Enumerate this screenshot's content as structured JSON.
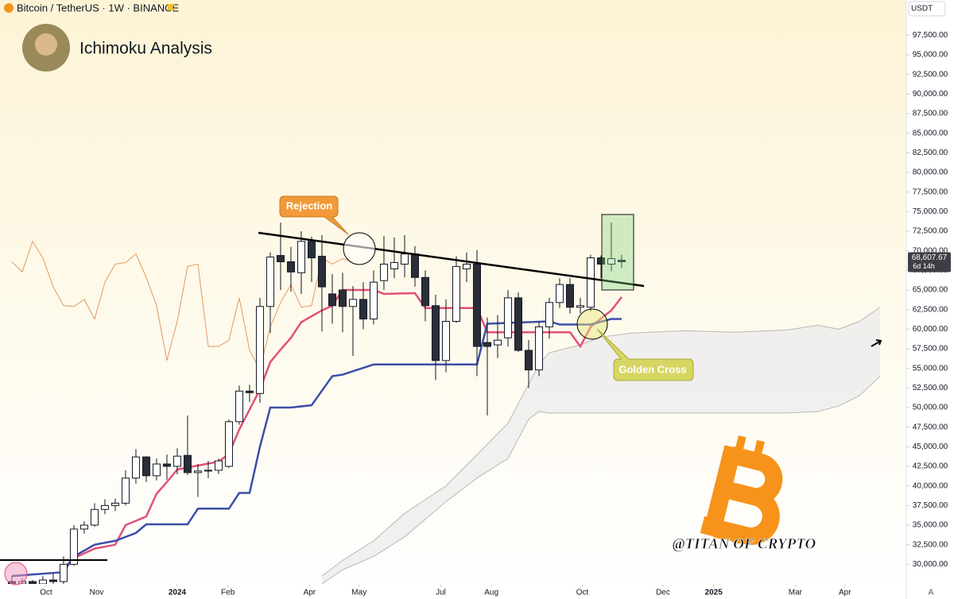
{
  "header": {
    "symbol": "Bitcoin / TetherUS · 1W · BINANCE",
    "currency": "USDT",
    "corner_button": "A"
  },
  "chart_data": {
    "type": "candlestick",
    "title": "Ichimoku Analysis",
    "open": [
      27800,
      27500,
      27800,
      27500,
      28000,
      27800,
      30000,
      34500,
      35000,
      37000,
      37500,
      37800,
      41000,
      43700,
      41300,
      42800,
      42500,
      43900,
      41700,
      41900,
      42000,
      42500,
      48200,
      52100,
      51800,
      62900,
      69400,
      68600,
      67200,
      71200,
      69300,
      64500,
      65000,
      62900,
      63800,
      61300,
      66200,
      67700,
      68300,
      69600,
      66600,
      63000,
      56000,
      61000,
      67700,
      68300,
      58300,
      58000,
      58900,
      64000,
      57300,
      54800,
      60300,
      63400,
      65700,
      62800,
      62800,
      69100,
      68300,
      68800
    ],
    "high": [
      28500,
      28200,
      28000,
      28500,
      28800,
      31000,
      35000,
      35500,
      37800,
      38300,
      38400,
      42000,
      44700,
      43800,
      43500,
      44000,
      44800,
      49000,
      42800,
      43200,
      43500,
      48500,
      52800,
      52900,
      64000,
      69800,
      73600,
      70500,
      72500,
      71800,
      72000,
      67000,
      67200,
      65500,
      66000,
      67500,
      71900,
      71700,
      72000,
      70600,
      67500,
      64400,
      63800,
      69300,
      69800,
      70100,
      61500,
      61800,
      65000,
      64700,
      58600,
      61000,
      64000,
      66500,
      66500,
      64000,
      69500,
      69400,
      73600,
      69500
    ],
    "low": [
      27000,
      26800,
      27000,
      27200,
      27300,
      27500,
      29800,
      33900,
      34800,
      36400,
      36800,
      37500,
      40300,
      40500,
      40700,
      40800,
      41500,
      41400,
      38600,
      41000,
      41500,
      42300,
      47800,
      50700,
      50600,
      59500,
      65000,
      64800,
      64500,
      66000,
      59700,
      60700,
      59600,
      56600,
      60000,
      60600,
      65000,
      66500,
      66600,
      65400,
      61000,
      53500,
      54500,
      60800,
      66000,
      54000,
      49000,
      56300,
      57800,
      57100,
      52500,
      54000,
      58800,
      62700,
      62000,
      62000,
      62300,
      66500,
      67400,
      67800
    ],
    "close": [
      27500,
      27800,
      27500,
      28000,
      27800,
      30000,
      34500,
      35000,
      37000,
      37500,
      37800,
      41000,
      43700,
      41300,
      42800,
      42500,
      43800,
      41700,
      41900,
      42000,
      43200,
      48200,
      52100,
      51900,
      62900,
      69200,
      68600,
      67300,
      71200,
      69100,
      65400,
      63000,
      62900,
      63800,
      61300,
      66000,
      68300,
      68500,
      69600,
      66600,
      63000,
      56000,
      61000,
      68000,
      68300,
      57800,
      57800,
      58600,
      64000,
      57300,
      54800,
      60300,
      63400,
      65700,
      62800,
      63000,
      69100,
      68300,
      69000,
      68607.67
    ],
    "up_color": "#ffffff",
    "down_color": "#2a2e39",
    "lagging_color": "#e39a5f",
    "last_price_label": "68,607.67",
    "countdown": "6d 14h",
    "lines": [
      {
        "color": "#e0507a",
        "x": [
          5,
          6,
          8,
          10,
          11,
          13,
          14,
          15,
          16,
          18,
          20,
          21,
          22,
          24,
          25,
          26,
          27,
          28,
          30,
          31,
          32,
          35,
          36,
          39,
          40,
          45,
          46,
          54,
          55,
          56,
          58,
          59
        ],
        "values": [
          29500,
          30800,
          32000,
          32500,
          35000,
          36100,
          39000,
          40500,
          42100,
          42600,
          43100,
          44100,
          47200,
          52300,
          55800,
          57400,
          58900,
          60900,
          62400,
          63000,
          65000,
          65000,
          64500,
          64600,
          62700,
          62700,
          59600,
          59600,
          57800,
          60300,
          62400,
          64100
        ]
      },
      {
        "color": "#3b4fa8",
        "x": [
          0,
          5,
          6,
          8,
          10,
          12,
          13,
          17,
          18,
          21,
          22,
          23,
          24,
          25,
          27,
          29,
          31,
          32,
          35,
          36,
          45,
          46,
          52,
          53,
          56,
          58,
          59
        ],
        "values": [
          28500,
          29000,
          31000,
          32500,
          33000,
          34000,
          35100,
          35100,
          37100,
          37100,
          39100,
          39100,
          45000,
          50000,
          50000,
          50300,
          54000,
          54200,
          55500,
          55500,
          55500,
          60700,
          61000,
          60600,
          60600,
          61300,
          61300
        ]
      }
    ],
    "cloud": {
      "color": "#ececec",
      "x": [
        30,
        32,
        35,
        38,
        42,
        45,
        48,
        50,
        51,
        52,
        55,
        57,
        60,
        65,
        70,
        75,
        78,
        80,
        82,
        84
      ],
      "upper": [
        28500,
        30500,
        33000,
        36500,
        40000,
        44000,
        48000,
        53000,
        55500,
        57000,
        58000,
        59000,
        59500,
        59800,
        59600,
        59900,
        60500,
        60000,
        61000,
        62800
      ],
      "lower": [
        27500,
        29300,
        31000,
        33500,
        38000,
        41000,
        43500,
        48500,
        49500,
        49300,
        49300,
        49300,
        49300,
        49300,
        49300,
        49300,
        49500,
        50200,
        51500,
        54000
      ]
    },
    "annotations": [
      {
        "text": "Rejection"
      },
      {
        "text": "Golden Cross"
      }
    ],
    "watermark": "@TITAN OF CRYPTO",
    "xlim": [
      -1.15,
      86.54
    ],
    "xticks": [
      {
        "value": 3.3,
        "label": "Oct"
      },
      {
        "value": 8.2,
        "label": "Nov"
      },
      {
        "value": 16,
        "label": "2024"
      },
      {
        "value": 20.9,
        "label": "Feb"
      },
      {
        "value": 28.8,
        "label": "Apr"
      },
      {
        "value": 33.6,
        "label": "May"
      },
      {
        "value": 41.5,
        "label": "Jul"
      },
      {
        "value": 46.4,
        "label": "Aug"
      },
      {
        "value": 55.2,
        "label": "Oct"
      },
      {
        "value": 63,
        "label": "Dec"
      },
      {
        "value": 67.9,
        "label": "2025"
      },
      {
        "value": 75.8,
        "label": "Mar"
      },
      {
        "value": 80.6,
        "label": "Apr"
      }
    ],
    "ylim": [
      27500,
      102000
    ],
    "yticks": [
      {
        "value": 30000,
        "label": "30,000.00"
      },
      {
        "value": 32500,
        "label": "32,500.00"
      },
      {
        "value": 35000,
        "label": "35,000.00"
      },
      {
        "value": 37500,
        "label": "37,500.00"
      },
      {
        "value": 40000,
        "label": "40,000.00"
      },
      {
        "value": 42500,
        "label": "42,500.00"
      },
      {
        "value": 45000,
        "label": "45,000.00"
      },
      {
        "value": 47500,
        "label": "47,500.00"
      },
      {
        "value": 50000,
        "label": "50,000.00"
      },
      {
        "value": 52500,
        "label": "52,500.00"
      },
      {
        "value": 55000,
        "label": "55,000.00"
      },
      {
        "value": 57500,
        "label": "57,500.00"
      },
      {
        "value": 60000,
        "label": "60,000.00"
      },
      {
        "value": 62500,
        "label": "62,500.00"
      },
      {
        "value": 65000,
        "label": "65,000.00"
      },
      {
        "value": 67500,
        "label": "67,500.00"
      },
      {
        "value": 70000,
        "label": "70,000.00"
      },
      {
        "value": 72500,
        "label": "72,500.00"
      },
      {
        "value": 75000,
        "label": "75,000.00"
      },
      {
        "value": 77500,
        "label": "77,500.00"
      },
      {
        "value": 80000,
        "label": "80,000.00"
      },
      {
        "value": 82500,
        "label": "82,500.00"
      },
      {
        "value": 85000,
        "label": "85,000.00"
      },
      {
        "value": 87500,
        "label": "87,500.00"
      },
      {
        "value": 90000,
        "label": "90,000.00"
      },
      {
        "value": 92500,
        "label": "92,500.00"
      },
      {
        "value": 95000,
        "label": "95,000.00"
      },
      {
        "value": 97500,
        "label": "97,500.00"
      }
    ],
    "grid": false
  }
}
